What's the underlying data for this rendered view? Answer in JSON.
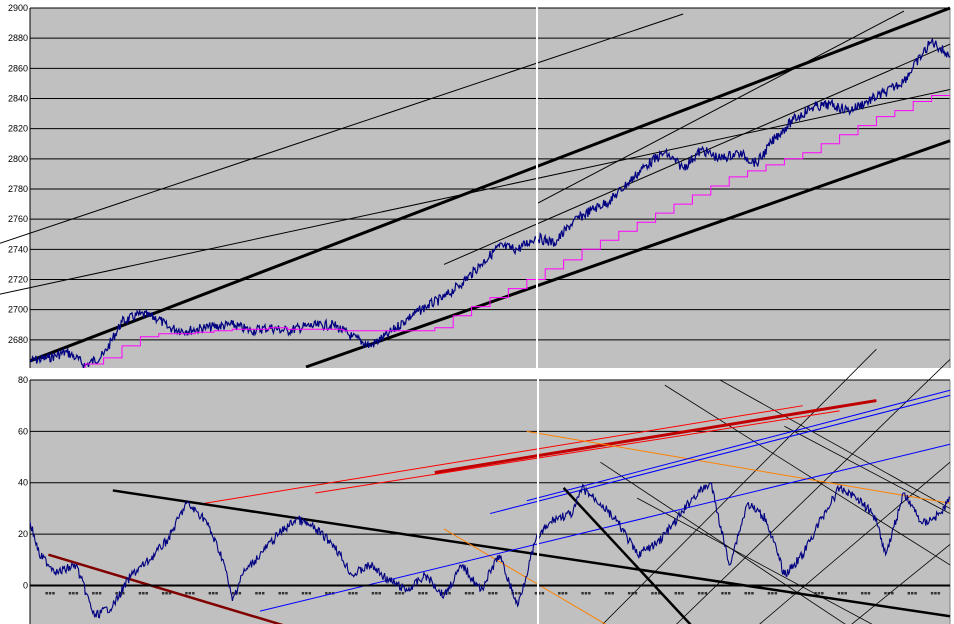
{
  "chart_data": [
    {
      "type": "line",
      "title": "",
      "xlabel": "",
      "ylabel": "",
      "ylim": [
        2660,
        2900
      ],
      "yticks": [
        "2900",
        "2880",
        "2860",
        "2840",
        "2820",
        "2800",
        "2780",
        "2760",
        "2740",
        "2720",
        "2700",
        "2680"
      ],
      "grid": true,
      "legend": "none",
      "colors": {
        "plot_bg": "#c0c0c0",
        "price": "#000080",
        "average": "#ff00ff",
        "trendline": "#000000"
      },
      "series": [
        {
          "style": "price",
          "x": [
            0,
            2,
            4,
            5,
            6,
            8,
            10,
            12,
            14,
            15,
            17,
            19,
            22,
            24,
            26,
            28,
            30,
            33,
            35,
            37,
            39,
            41,
            43,
            45,
            47,
            49,
            51,
            53,
            55,
            57,
            59,
            61,
            63,
            65,
            67,
            69,
            71,
            73,
            75,
            77,
            79,
            81,
            83,
            85,
            87,
            89,
            91,
            93,
            95,
            98,
            100
          ],
          "y": [
            2666,
            2668,
            2672,
            2668,
            2663,
            2670,
            2692,
            2697,
            2694,
            2688,
            2686,
            2688,
            2690,
            2686,
            2688,
            2686,
            2689,
            2690,
            2682,
            2676,
            2684,
            2694,
            2702,
            2708,
            2718,
            2730,
            2742,
            2740,
            2748,
            2744,
            2758,
            2766,
            2772,
            2784,
            2796,
            2804,
            2794,
            2806,
            2800,
            2804,
            2797,
            2814,
            2826,
            2834,
            2836,
            2832,
            2838,
            2844,
            2852,
            2878,
            2868
          ]
        },
        {
          "style": "average",
          "x": [
            0,
            4,
            6,
            8,
            10,
            12,
            14,
            16,
            18,
            20,
            22,
            24,
            26,
            28,
            30,
            32,
            34,
            36,
            38,
            40,
            42,
            44,
            46,
            48,
            50,
            52,
            54,
            56,
            58,
            60,
            62,
            64,
            66,
            68,
            70,
            72,
            74,
            76,
            78,
            80,
            82,
            84,
            86,
            88,
            90,
            92,
            94,
            96,
            98,
            100
          ],
          "y": [
            2660,
            2661,
            2664,
            2668,
            2676,
            2682,
            2684,
            2684,
            2685,
            2686,
            2687,
            2687,
            2688,
            2687,
            2687,
            2687,
            2686,
            2686,
            2686,
            2686,
            2686,
            2688,
            2696,
            2702,
            2708,
            2714,
            2720,
            2727,
            2733,
            2740,
            2746,
            2752,
            2758,
            2764,
            2770,
            2776,
            2782,
            2788,
            2792,
            2796,
            2800,
            2804,
            2810,
            2816,
            2822,
            2828,
            2832,
            2838,
            2842,
            2842
          ]
        }
      ],
      "trendlines": [
        {
          "weight": "heavy",
          "from": [
            0,
            2666
          ],
          "to": [
            100,
            2900
          ]
        },
        {
          "weight": "heavy",
          "from": [
            30,
            2662
          ],
          "to": [
            100,
            2812
          ]
        },
        {
          "weight": "light",
          "from": [
            -15,
            2720
          ],
          "to": [
            71,
            2896
          ]
        },
        {
          "weight": "light",
          "from": [
            -5,
            2708
          ],
          "to": [
            100,
            2846
          ]
        },
        {
          "weight": "light",
          "from": [
            45,
            2730
          ],
          "to": [
            100,
            2876
          ]
        },
        {
          "weight": "light",
          "from": [
            55,
            2770
          ],
          "to": [
            95,
            2898
          ]
        }
      ]
    },
    {
      "type": "line",
      "title": "",
      "xlabel": "",
      "ylabel": "",
      "ylim": [
        -15,
        80
      ],
      "yticks": [
        "80",
        "60",
        "40",
        "20",
        "0"
      ],
      "grid": true,
      "legend": "none",
      "colors": {
        "plot_bg": "#c0c0c0",
        "oscillator": "#000080"
      },
      "series": [
        {
          "style": "oscillator",
          "x": [
            0,
            1,
            3,
            5,
            7,
            9,
            11,
            13,
            15,
            17,
            19,
            21,
            22,
            23,
            25,
            27,
            29,
            31,
            33,
            35,
            37,
            39,
            41,
            43,
            45,
            47,
            49,
            51,
            53,
            55,
            57,
            59,
            60,
            62,
            64,
            66,
            68,
            70,
            72,
            74,
            76,
            78,
            80,
            82,
            84,
            86,
            88,
            90,
            92,
            93,
            95,
            97,
            99,
            100
          ],
          "y": [
            25,
            12,
            5,
            8,
            -12,
            -8,
            4,
            10,
            18,
            32,
            26,
            10,
            -6,
            4,
            12,
            20,
            26,
            22,
            16,
            4,
            8,
            2,
            -2,
            4,
            -4,
            8,
            -2,
            12,
            -8,
            18,
            26,
            28,
            38,
            32,
            24,
            12,
            16,
            24,
            34,
            40,
            8,
            32,
            26,
            4,
            12,
            26,
            38,
            34,
            26,
            12,
            36,
            24,
            28,
            34
          ]
        }
      ],
      "overlay_lines": [
        {
          "color": "#ff0000",
          "from": [
            19,
            32
          ],
          "to": [
            84,
            70
          ]
        },
        {
          "color": "#ff0000",
          "from": [
            31,
            36
          ],
          "to": [
            88,
            68
          ]
        },
        {
          "color": "#c00000",
          "from": [
            44,
            44
          ],
          "to": [
            92,
            72
          ]
        },
        {
          "color": "#000000",
          "from": [
            9,
            37
          ],
          "to": [
            100,
            -12
          ]
        },
        {
          "color": "#800000",
          "from": [
            2,
            12
          ],
          "to": [
            28,
            -16
          ]
        },
        {
          "color": "#ff8000",
          "from": [
            54,
            60
          ],
          "to": [
            100,
            32
          ]
        },
        {
          "color": "#ff8000",
          "from": [
            45,
            22
          ],
          "to": [
            63,
            -16
          ]
        },
        {
          "color": "#0000ff",
          "from": [
            25,
            -10
          ],
          "to": [
            100,
            55
          ]
        },
        {
          "color": "#0000ff",
          "from": [
            50,
            28
          ],
          "to": [
            100,
            74
          ]
        },
        {
          "color": "#0000ff",
          "from": [
            54,
            33
          ],
          "to": [
            100,
            76
          ]
        },
        {
          "color": "#000000",
          "from": [
            58,
            38
          ],
          "to": [
            72,
            -16
          ]
        }
      ],
      "grid_diagonals": [
        {
          "from": [
            62,
            -16
          ],
          "to": [
            92,
            92
          ]
        },
        {
          "from": [
            70,
            -16
          ],
          "to": [
            100,
            88
          ]
        },
        {
          "from": [
            79,
            -16
          ],
          "to": [
            100,
            48
          ]
        },
        {
          "from": [
            89,
            -16
          ],
          "to": [
            100,
            16
          ]
        },
        {
          "from": [
            62,
            48
          ],
          "to": [
            89,
            -16
          ]
        },
        {
          "from": [
            66,
            34
          ],
          "to": [
            92,
            -16
          ]
        },
        {
          "from": [
            82,
            62
          ],
          "to": [
            100,
            28
          ]
        },
        {
          "from": [
            69,
            78
          ],
          "to": [
            100,
            8
          ]
        },
        {
          "from": [
            75,
            80
          ],
          "to": [
            100,
            30
          ]
        }
      ]
    }
  ]
}
